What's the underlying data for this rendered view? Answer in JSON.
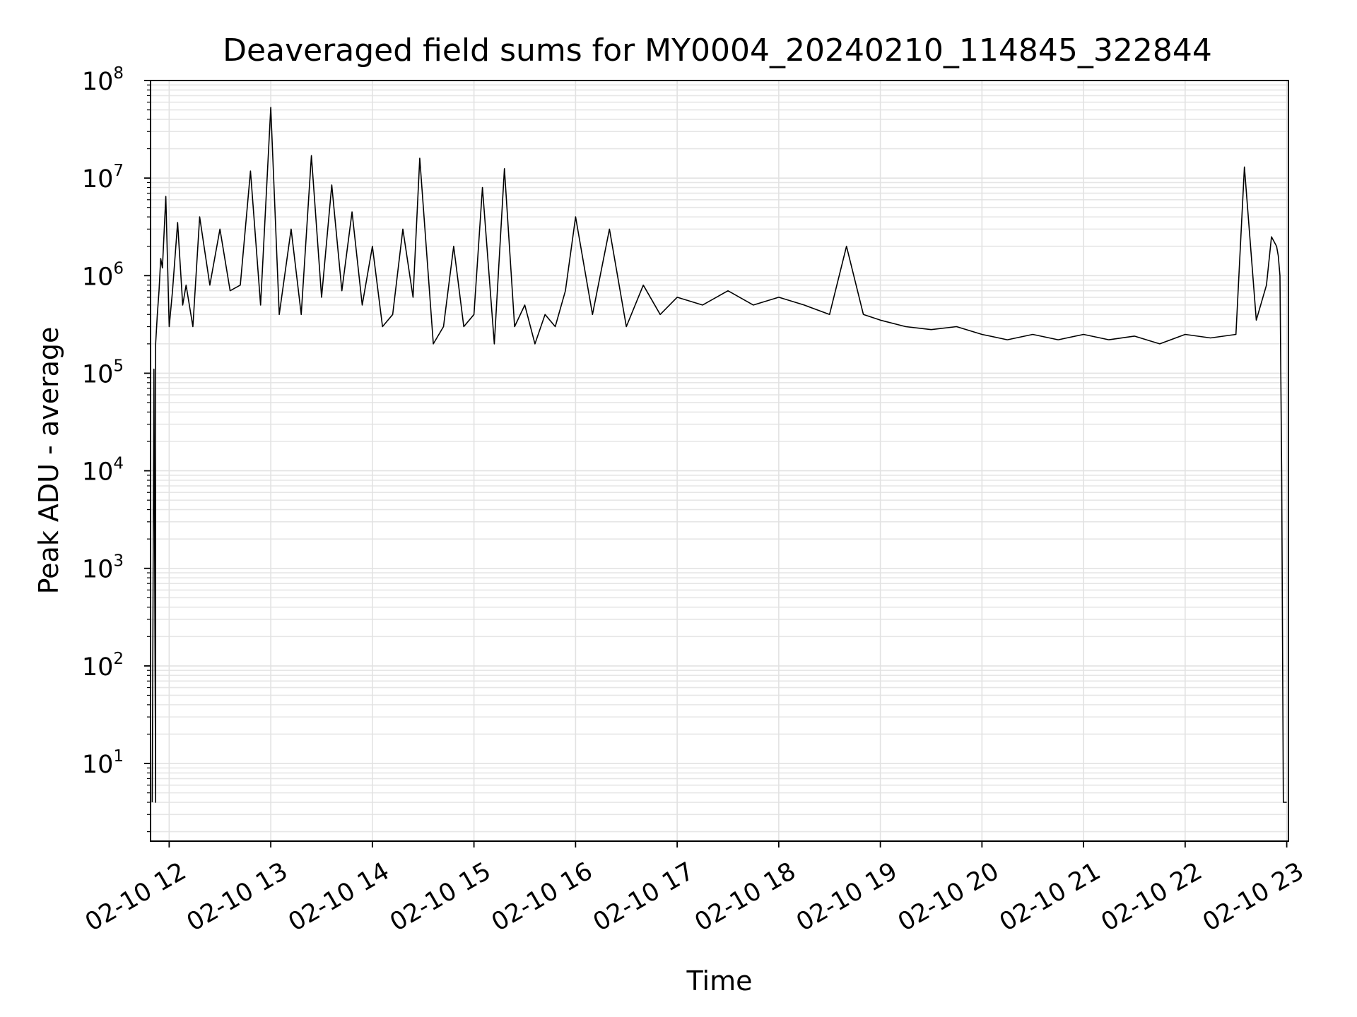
{
  "chart_data": {
    "type": "line",
    "title": "Deaveraged field sums for MY0004_20240210_114845_322844",
    "xlabel": "Time",
    "ylabel": "Peak ADU - average",
    "yscale": "log",
    "ylim": [
      1.6,
      100000000
    ],
    "xlim": [
      "2024-02-10 11:49",
      "2024-02-10 23:01"
    ],
    "grid": true,
    "line_color": "#000000",
    "x_ticks": [
      "02-10 12",
      "02-10 13",
      "02-10 14",
      "02-10 15",
      "02-10 16",
      "02-10 17",
      "02-10 18",
      "02-10 19",
      "02-10 20",
      "02-10 21",
      "02-10 22",
      "02-10 23"
    ],
    "y_ticks": [
      {
        "base": "10",
        "exp": "1"
      },
      {
        "base": "10",
        "exp": "2"
      },
      {
        "base": "10",
        "exp": "3"
      },
      {
        "base": "10",
        "exp": "4"
      },
      {
        "base": "10",
        "exp": "5"
      },
      {
        "base": "10",
        "exp": "6"
      },
      {
        "base": "10",
        "exp": "7"
      },
      {
        "base": "10",
        "exp": "8"
      }
    ],
    "series": [
      {
        "x": [
          "2024-02-10 11:50",
          "2024-02-10 11:51",
          "2024-02-10 11:52",
          "2024-02-10 11:52",
          "2024-02-10 11:53",
          "2024-02-10 11:54",
          "2024-02-10 11:55",
          "2024-02-10 11:56",
          "2024-02-10 11:58",
          "2024-02-10 12:00",
          "2024-02-10 12:02",
          "2024-02-10 12:05",
          "2024-02-10 12:08",
          "2024-02-10 12:10",
          "2024-02-10 12:14",
          "2024-02-10 12:18",
          "2024-02-10 12:24",
          "2024-02-10 12:30",
          "2024-02-10 12:36",
          "2024-02-10 12:42",
          "2024-02-10 12:48",
          "2024-02-10 12:54",
          "2024-02-10 13:00",
          "2024-02-10 13:05",
          "2024-02-10 13:12",
          "2024-02-10 13:18",
          "2024-02-10 13:24",
          "2024-02-10 13:30",
          "2024-02-10 13:36",
          "2024-02-10 13:42",
          "2024-02-10 13:48",
          "2024-02-10 13:54",
          "2024-02-10 14:00",
          "2024-02-10 14:06",
          "2024-02-10 14:12",
          "2024-02-10 14:18",
          "2024-02-10 14:24",
          "2024-02-10 14:28",
          "2024-02-10 14:36",
          "2024-02-10 14:42",
          "2024-02-10 14:48",
          "2024-02-10 14:54",
          "2024-02-10 15:00",
          "2024-02-10 15:05",
          "2024-02-10 15:12",
          "2024-02-10 15:18",
          "2024-02-10 15:24",
          "2024-02-10 15:30",
          "2024-02-10 15:36",
          "2024-02-10 15:42",
          "2024-02-10 15:48",
          "2024-02-10 15:54",
          "2024-02-10 16:00",
          "2024-02-10 16:10",
          "2024-02-10 16:20",
          "2024-02-10 16:30",
          "2024-02-10 16:40",
          "2024-02-10 16:50",
          "2024-02-10 17:00",
          "2024-02-10 17:15",
          "2024-02-10 17:30",
          "2024-02-10 17:45",
          "2024-02-10 18:00",
          "2024-02-10 18:15",
          "2024-02-10 18:30",
          "2024-02-10 18:40",
          "2024-02-10 18:50",
          "2024-02-10 19:00",
          "2024-02-10 19:15",
          "2024-02-10 19:30",
          "2024-02-10 19:45",
          "2024-02-10 20:00",
          "2024-02-10 20:15",
          "2024-02-10 20:30",
          "2024-02-10 20:45",
          "2024-02-10 21:00",
          "2024-02-10 21:15",
          "2024-02-10 21:30",
          "2024-02-10 21:45",
          "2024-02-10 22:00",
          "2024-02-10 22:15",
          "2024-02-10 22:30",
          "2024-02-10 22:35",
          "2024-02-10 22:42",
          "2024-02-10 22:48",
          "2024-02-10 22:51",
          "2024-02-10 22:54",
          "2024-02-10 22:55",
          "2024-02-10 22:56",
          "2024-02-10 22:57",
          "2024-02-10 22:58",
          "2024-02-10 22:59",
          "2024-02-10 23:00"
        ],
        "y": [
          4,
          110000,
          4,
          200000,
          400000,
          700000,
          1500000,
          1200000,
          6500000,
          300000,
          700000,
          3500000,
          500000,
          800000,
          300000,
          4000000,
          800000,
          3000000,
          700000,
          800000,
          11800000,
          500000,
          53000000,
          400000,
          3000000,
          400000,
          17000000,
          600000,
          8500000,
          700000,
          4500000,
          500000,
          2000000,
          300000,
          400000,
          3000000,
          600000,
          16000000,
          200000,
          300000,
          2000000,
          300000,
          400000,
          8000000,
          200000,
          12500000,
          300000,
          500000,
          200000,
          400000,
          300000,
          700000,
          4000000,
          400000,
          3000000,
          300000,
          800000,
          400000,
          600000,
          500000,
          700000,
          500000,
          600000,
          500000,
          400000,
          2000000,
          400000,
          350000,
          300000,
          280000,
          300000,
          250000,
          220000,
          250000,
          220000,
          250000,
          220000,
          240000,
          200000,
          250000,
          230000,
          250000,
          13000000,
          350000,
          800000,
          2500000,
          2000000,
          1600000,
          1000000,
          10000,
          4,
          4,
          4
        ]
      }
    ]
  }
}
